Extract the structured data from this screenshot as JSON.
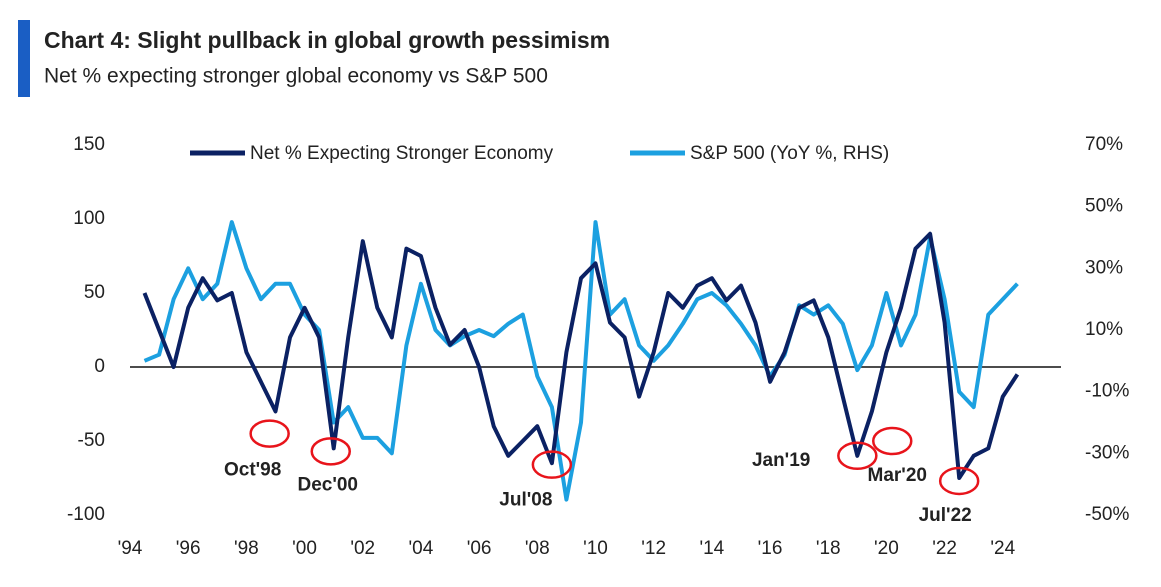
{
  "chart_data": {
    "type": "line",
    "title": "Chart 4: Slight pullback in global growth pessimism",
    "subtitle": "Net % expecting stronger global economy vs S&P 500",
    "x": [
      1994.5,
      1995.0,
      1995.5,
      1996.0,
      1996.5,
      1997.0,
      1997.5,
      1998.0,
      1998.5,
      1999.0,
      1999.5,
      2000.0,
      2000.5,
      2001.0,
      2001.5,
      2002.0,
      2002.5,
      2003.0,
      2003.5,
      2004.0,
      2004.5,
      2005.0,
      2005.5,
      2006.0,
      2006.5,
      2007.0,
      2007.5,
      2008.0,
      2008.5,
      2009.0,
      2009.5,
      2010.0,
      2010.5,
      2011.0,
      2011.5,
      2012.0,
      2012.5,
      2013.0,
      2013.5,
      2014.0,
      2014.5,
      2015.0,
      2015.5,
      2016.0,
      2016.5,
      2017.0,
      2017.5,
      2018.0,
      2018.5,
      2019.0,
      2019.5,
      2020.0,
      2020.5,
      2021.0,
      2021.5,
      2022.0,
      2022.5,
      2023.0,
      2023.5,
      2024.0,
      2024.5
    ],
    "series": [
      {
        "name": "Net % Expecting Stronger Economy",
        "color": "#0b2163",
        "axis": "y",
        "values": [
          50,
          25,
          0,
          40,
          60,
          45,
          50,
          10,
          -10,
          -30,
          20,
          40,
          20,
          -55,
          20,
          85,
          40,
          20,
          80,
          75,
          40,
          15,
          25,
          0,
          -40,
          -60,
          -50,
          -40,
          -65,
          10,
          60,
          70,
          30,
          20,
          -20,
          10,
          50,
          40,
          55,
          60,
          45,
          55,
          30,
          -10,
          10,
          40,
          45,
          20,
          -20,
          -60,
          -30,
          10,
          40,
          80,
          90,
          30,
          -75,
          -60,
          -55,
          -20,
          -5
        ]
      },
      {
        "name": "S&P 500 (YoY %, RHS)",
        "color": "#1ca0e0",
        "axis": "y2",
        "values": [
          0,
          2,
          20,
          30,
          20,
          25,
          45,
          30,
          20,
          25,
          25,
          15,
          10,
          -20,
          -15,
          -25,
          -25,
          -30,
          5,
          25,
          10,
          5,
          8,
          10,
          8,
          12,
          15,
          -5,
          -15,
          -45,
          -20,
          45,
          15,
          20,
          5,
          0,
          5,
          12,
          20,
          22,
          18,
          12,
          5,
          -5,
          2,
          18,
          15,
          18,
          12,
          -3,
          5,
          22,
          5,
          15,
          40,
          20,
          -10,
          -15,
          15,
          20,
          25
        ]
      }
    ],
    "xlim": [
      1994,
      2026
    ],
    "xticks": [
      {
        "value": 1994,
        "label": "'94"
      },
      {
        "value": 1996,
        "label": "'96"
      },
      {
        "value": 1998,
        "label": "'98"
      },
      {
        "value": 2000,
        "label": "'00"
      },
      {
        "value": 2002,
        "label": "'02"
      },
      {
        "value": 2004,
        "label": "'04"
      },
      {
        "value": 2006,
        "label": "'06"
      },
      {
        "value": 2008,
        "label": "'08"
      },
      {
        "value": 2010,
        "label": "'10"
      },
      {
        "value": 2012,
        "label": "'12"
      },
      {
        "value": 2014,
        "label": "'14"
      },
      {
        "value": 2016,
        "label": "'16"
      },
      {
        "value": 2018,
        "label": "'18"
      },
      {
        "value": 2020,
        "label": "'20"
      },
      {
        "value": 2022,
        "label": "'22"
      },
      {
        "value": 2024,
        "label": "'24"
      }
    ],
    "ylim": [
      -100,
      150
    ],
    "yticks": [
      150,
      100,
      50,
      0,
      -50,
      -100
    ],
    "y2lim": [
      -50,
      70
    ],
    "y2ticks": [
      {
        "value": 70,
        "label": "70%"
      },
      {
        "value": 50,
        "label": "50%"
      },
      {
        "value": 30,
        "label": "30%"
      },
      {
        "value": 10,
        "label": "10%"
      },
      {
        "value": -10,
        "label": "-10%"
      },
      {
        "value": -30,
        "label": "-30%"
      },
      {
        "value": -50,
        "label": "-50%"
      }
    ],
    "annotations": [
      {
        "label": "Oct'98",
        "x": 1998.8,
        "y": -45
      },
      {
        "label": "Dec'00",
        "x": 2000.9,
        "y": -57
      },
      {
        "label": "Jul'08",
        "x": 2008.5,
        "y": -66
      },
      {
        "label": "Jan'19",
        "x": 2019.0,
        "y": -60
      },
      {
        "label": "Mar'20",
        "x": 2020.2,
        "y": -50
      },
      {
        "label": "Jul'22",
        "x": 2022.5,
        "y": -77
      }
    ]
  }
}
